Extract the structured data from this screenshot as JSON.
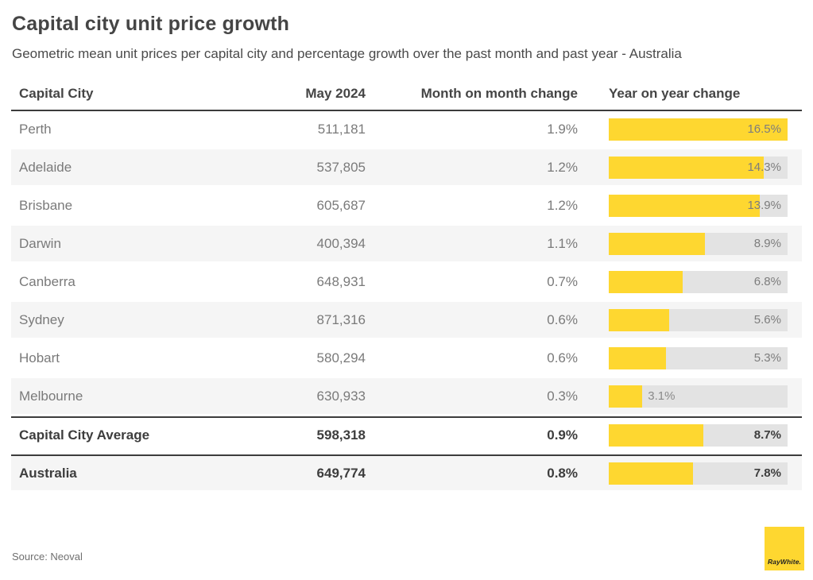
{
  "page": {
    "title": "Capital city unit price growth",
    "subtitle": "Geometric mean unit prices per capital city and percentage growth over the past month and past year - Australia"
  },
  "table": {
    "columns": {
      "city": "Capital City",
      "price": "May 2024",
      "mom": "Month on month change",
      "yoy": "Year on year change"
    },
    "bar_axis_max": 16.5,
    "rows": [
      {
        "city": "Perth",
        "price": "511,181",
        "mom": "1.9%",
        "yoy": 16.5,
        "yoy_label": "16.5%",
        "emphasis": false,
        "striped": false,
        "dark_top": false
      },
      {
        "city": "Adelaide",
        "price": "537,805",
        "mom": "1.2%",
        "yoy": 14.3,
        "yoy_label": "14.3%",
        "emphasis": false,
        "striped": true,
        "dark_top": false
      },
      {
        "city": "Brisbane",
        "price": "605,687",
        "mom": "1.2%",
        "yoy": 13.9,
        "yoy_label": "13.9%",
        "emphasis": false,
        "striped": false,
        "dark_top": false
      },
      {
        "city": "Darwin",
        "price": "400,394",
        "mom": "1.1%",
        "yoy": 8.9,
        "yoy_label": "8.9%",
        "emphasis": false,
        "striped": true,
        "dark_top": false
      },
      {
        "city": "Canberra",
        "price": "648,931",
        "mom": "0.7%",
        "yoy": 6.8,
        "yoy_label": "6.8%",
        "emphasis": false,
        "striped": false,
        "dark_top": false
      },
      {
        "city": "Sydney",
        "price": "871,316",
        "mom": "0.6%",
        "yoy": 5.6,
        "yoy_label": "5.6%",
        "emphasis": false,
        "striped": true,
        "dark_top": false
      },
      {
        "city": "Hobart",
        "price": "580,294",
        "mom": "0.6%",
        "yoy": 5.3,
        "yoy_label": "5.3%",
        "emphasis": false,
        "striped": false,
        "dark_top": false
      },
      {
        "city": "Melbourne",
        "price": "630,933",
        "mom": "0.3%",
        "yoy": 3.1,
        "yoy_label": "3.1%",
        "emphasis": false,
        "striped": true,
        "dark_top": false
      },
      {
        "city": "Capital City Average",
        "price": "598,318",
        "mom": "0.9%",
        "yoy": 8.7,
        "yoy_label": "8.7%",
        "emphasis": true,
        "striped": false,
        "dark_top": true
      },
      {
        "city": "Australia",
        "price": "649,774",
        "mom": "0.8%",
        "yoy": 7.8,
        "yoy_label": "7.8%",
        "emphasis": true,
        "striped": true,
        "dark_top": true
      }
    ]
  },
  "chart_data": {
    "type": "table",
    "title": "Capital city unit price growth",
    "subtitle": "Geometric mean unit prices per capital city and percentage growth over the past month and past year - Australia",
    "columns": [
      "Capital City",
      "May 2024",
      "Month on month change",
      "Year on year change"
    ],
    "categories": [
      "Perth",
      "Adelaide",
      "Brisbane",
      "Darwin",
      "Canberra",
      "Sydney",
      "Hobart",
      "Melbourne",
      "Capital City Average",
      "Australia"
    ],
    "series": [
      {
        "name": "May 2024 geometric mean unit price",
        "values": [
          511181,
          537805,
          605687,
          400394,
          648931,
          871316,
          580294,
          630933,
          598318,
          649774
        ]
      },
      {
        "name": "Month on month change (%)",
        "values": [
          1.9,
          1.2,
          1.2,
          1.1,
          0.7,
          0.6,
          0.6,
          0.3,
          0.9,
          0.8
        ]
      },
      {
        "name": "Year on year change (%)",
        "values": [
          16.5,
          14.3,
          13.9,
          8.9,
          6.8,
          5.6,
          5.3,
          3.1,
          8.7,
          7.8
        ]
      }
    ],
    "bar_column": "Year on year change",
    "bar_type": "horizontal bar embedded in table rows",
    "bar_axis_max": 16.5,
    "legend": "none",
    "grid": false
  },
  "footer": {
    "source": "Source: Neoval",
    "logo_text": "RayWhite."
  },
  "colors": {
    "bar_yellow": "#fed730",
    "bar_track": "#e3e3e3",
    "row_stripe": "#f5f5f5",
    "dark_border": "#3c3c3c",
    "text_dark": "#3d3d3d",
    "text_gray": "#7a7a7a"
  }
}
